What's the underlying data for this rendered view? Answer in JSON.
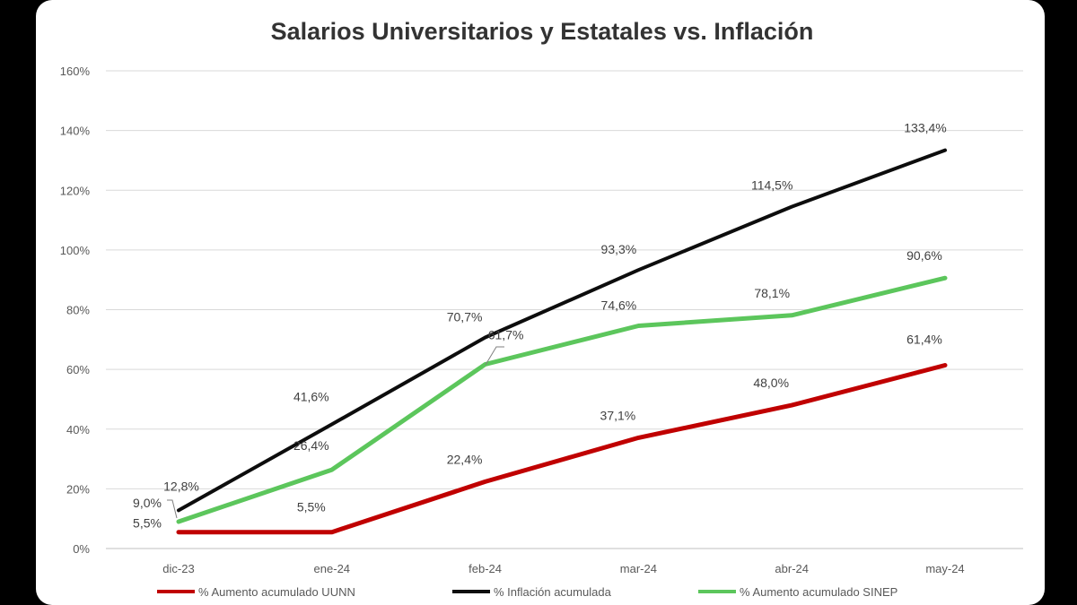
{
  "chart_data": {
    "type": "line",
    "title": "Salarios Universitarios y Estatales vs. Inflación",
    "categories": [
      "dic-23",
      "ene-24",
      "feb-24",
      "mar-24",
      "abr-24",
      "may-24"
    ],
    "y_ticks": [
      "0%",
      "20%",
      "40%",
      "60%",
      "80%",
      "100%",
      "120%",
      "140%",
      "160%"
    ],
    "ylim": [
      0,
      160
    ],
    "grid": true,
    "legend_position": "bottom",
    "series": [
      {
        "name": "% Aumento acumulado UUNN",
        "color": "#c00000",
        "values": [
          5.5,
          5.5,
          22.4,
          37.1,
          48.0,
          61.4
        ],
        "labels": [
          "5,5%",
          "5,5%",
          "22,4%",
          "37,1%",
          "48,0%",
          "61,4%"
        ]
      },
      {
        "name": "% Inflación acumulada",
        "color": "#0d0d0d",
        "values": [
          12.8,
          41.6,
          70.7,
          93.3,
          114.5,
          133.4
        ],
        "labels": [
          "12,8%",
          "41,6%",
          "70,7%",
          "93,3%",
          "114,5%",
          "133,4%"
        ]
      },
      {
        "name": "% Aumento acumulado SINEP",
        "color": "#5cc65c",
        "values": [
          9.0,
          26.4,
          61.7,
          74.6,
          78.1,
          90.6
        ],
        "labels": [
          "9,0%",
          "26,4%",
          "61,7%",
          "74,6%",
          "78,1%",
          "90,6%"
        ]
      }
    ]
  }
}
